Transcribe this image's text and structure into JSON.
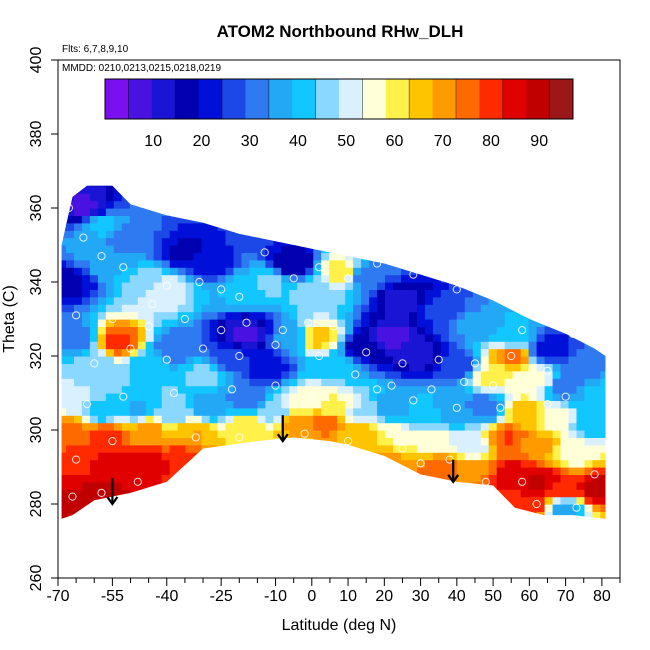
{
  "chart_data": {
    "type": "heatmap",
    "title": "ATOM2 Northbound RHw_DLH",
    "info_lines": [
      "Flts: 6,7,8,9,10",
      "MMDD: 0210,0213,0215,0218,0219"
    ],
    "xlabel": "Latitude (deg N)",
    "ylabel": "Theta (C)",
    "xlim": [
      -70,
      85
    ],
    "ylim": [
      260,
      400
    ],
    "x_ticks": [
      -70,
      -55,
      -40,
      -25,
      -10,
      0,
      10,
      20,
      30,
      40,
      50,
      60,
      70,
      80
    ],
    "x_minor_ticks": [
      -65,
      -60,
      -50,
      -45,
      -35,
      -30,
      -20,
      -15,
      -5,
      5,
      15,
      25,
      35,
      45,
      55,
      65,
      75,
      85
    ],
    "y_ticks": [
      260,
      280,
      300,
      320,
      340,
      360,
      380,
      400
    ],
    "colorbar": {
      "range": [
        0,
        97
      ],
      "ticks": [
        10,
        20,
        30,
        40,
        50,
        60,
        70,
        80,
        90
      ],
      "colors": [
        "#7a10f0",
        "#4a12e0",
        "#1a14d4",
        "#0000b0",
        "#0010d8",
        "#1c48e8",
        "#2f7af0",
        "#23a8f6",
        "#12c6ff",
        "#8ad8ff",
        "#d9f0ff",
        "#ffffd8",
        "#fff04a",
        "#ffc400",
        "#ff9a00",
        "#ff6a00",
        "#ff2a00",
        "#e00000",
        "#c00000",
        "#9a1818"
      ]
    },
    "envelope_top": [
      [
        -69,
        350
      ],
      [
        -66,
        363
      ],
      [
        -62,
        366
      ],
      [
        -55,
        366
      ],
      [
        -50,
        361
      ],
      [
        -40,
        358
      ],
      [
        -30,
        356
      ],
      [
        -20,
        353
      ],
      [
        -10,
        351
      ],
      [
        0,
        349
      ],
      [
        10,
        347
      ],
      [
        20,
        345
      ],
      [
        30,
        342
      ],
      [
        40,
        339
      ],
      [
        50,
        335
      ],
      [
        60,
        330
      ],
      [
        70,
        326
      ],
      [
        78,
        322
      ],
      [
        81,
        320
      ]
    ],
    "envelope_bottom": [
      [
        81,
        276
      ],
      [
        72,
        277
      ],
      [
        64,
        277
      ],
      [
        56,
        279
      ],
      [
        50,
        285
      ],
      [
        40,
        286
      ],
      [
        30,
        288
      ],
      [
        20,
        293
      ],
      [
        10,
        296
      ],
      [
        5,
        297
      ],
      [
        -5,
        298
      ],
      [
        -15,
        297
      ],
      [
        -30,
        295
      ],
      [
        -40,
        286
      ],
      [
        -50,
        283
      ],
      [
        -60,
        281
      ],
      [
        -66,
        277
      ],
      [
        -69,
        276
      ]
    ],
    "cells": [
      {
        "lat": -67,
        "theta": 340,
        "rh": 18
      },
      {
        "lat": -62,
        "theta": 350,
        "rh": 35
      },
      {
        "lat": -62,
        "theta": 360,
        "rh": 8
      },
      {
        "lat": -58,
        "theta": 356,
        "rh": 42
      },
      {
        "lat": -55,
        "theta": 345,
        "rh": 38
      },
      {
        "lat": -50,
        "theta": 352,
        "rh": 30
      },
      {
        "lat": -45,
        "theta": 340,
        "rh": 48
      },
      {
        "lat": -40,
        "theta": 338,
        "rh": 52
      },
      {
        "lat": -35,
        "theta": 348,
        "rh": 18
      },
      {
        "lat": -28,
        "theta": 345,
        "rh": 22
      },
      {
        "lat": -20,
        "theta": 338,
        "rh": 40
      },
      {
        "lat": -12,
        "theta": 340,
        "rh": 45
      },
      {
        "lat": -5,
        "theta": 345,
        "rh": 15
      },
      {
        "lat": 2,
        "theta": 338,
        "rh": 48
      },
      {
        "lat": 8,
        "theta": 343,
        "rh": 62
      },
      {
        "lat": 15,
        "theta": 342,
        "rh": 30
      },
      {
        "lat": 25,
        "theta": 335,
        "rh": 12
      },
      {
        "lat": 35,
        "theta": 332,
        "rh": 25
      },
      {
        "lat": 45,
        "theta": 328,
        "rh": 35
      },
      {
        "lat": 55,
        "theta": 325,
        "rh": 40
      },
      {
        "lat": 65,
        "theta": 322,
        "rh": 20
      },
      {
        "lat": 75,
        "theta": 318,
        "rh": 30
      },
      {
        "lat": -65,
        "theta": 325,
        "rh": 30
      },
      {
        "lat": -60,
        "theta": 318,
        "rh": 45
      },
      {
        "lat": -53,
        "theta": 324,
        "rh": 80
      },
      {
        "lat": -45,
        "theta": 318,
        "rh": 40
      },
      {
        "lat": -38,
        "theta": 322,
        "rh": 30
      },
      {
        "lat": -30,
        "theta": 315,
        "rh": 45
      },
      {
        "lat": -22,
        "theta": 320,
        "rh": 25
      },
      {
        "lat": -18,
        "theta": 326,
        "rh": 8
      },
      {
        "lat": -12,
        "theta": 317,
        "rh": 20
      },
      {
        "lat": -6,
        "theta": 325,
        "rh": 35
      },
      {
        "lat": 2,
        "theta": 325,
        "rh": 65
      },
      {
        "lat": 8,
        "theta": 318,
        "rh": 40
      },
      {
        "lat": 14,
        "theta": 322,
        "rh": 15
      },
      {
        "lat": 22,
        "theta": 325,
        "rh": 8
      },
      {
        "lat": 30,
        "theta": 320,
        "rh": 12
      },
      {
        "lat": 40,
        "theta": 318,
        "rh": 25
      },
      {
        "lat": 50,
        "theta": 315,
        "rh": 60
      },
      {
        "lat": 55,
        "theta": 320,
        "rh": 75
      },
      {
        "lat": 62,
        "theta": 314,
        "rh": 55
      },
      {
        "lat": 70,
        "theta": 312,
        "rh": 30
      },
      {
        "lat": 78,
        "theta": 310,
        "rh": 40
      },
      {
        "lat": -66,
        "theta": 308,
        "rh": 50
      },
      {
        "lat": -58,
        "theta": 305,
        "rh": 40
      },
      {
        "lat": -48,
        "theta": 306,
        "rh": 38
      },
      {
        "lat": -38,
        "theta": 305,
        "rh": 45
      },
      {
        "lat": -28,
        "theta": 306,
        "rh": 35
      },
      {
        "lat": -18,
        "theta": 308,
        "rh": 30
      },
      {
        "lat": -10,
        "theta": 305,
        "rh": 45
      },
      {
        "lat": -2,
        "theta": 308,
        "rh": 55
      },
      {
        "lat": 6,
        "theta": 306,
        "rh": 60
      },
      {
        "lat": 14,
        "theta": 305,
        "rh": 48
      },
      {
        "lat": 22,
        "theta": 306,
        "rh": 35
      },
      {
        "lat": 30,
        "theta": 304,
        "rh": 40
      },
      {
        "lat": 40,
        "theta": 305,
        "rh": 35
      },
      {
        "lat": 48,
        "theta": 306,
        "rh": 30
      },
      {
        "lat": 58,
        "theta": 305,
        "rh": 65
      },
      {
        "lat": 68,
        "theta": 303,
        "rh": 55
      },
      {
        "lat": 76,
        "theta": 302,
        "rh": 40
      },
      {
        "lat": -67,
        "theta": 300,
        "rh": 75
      },
      {
        "lat": -57,
        "theta": 299,
        "rh": 80
      },
      {
        "lat": -45,
        "theta": 300,
        "rh": 70
      },
      {
        "lat": -32,
        "theta": 300,
        "rh": 68
      },
      {
        "lat": -18,
        "theta": 301,
        "rh": 62
      },
      {
        "lat": -5,
        "theta": 302,
        "rh": 70
      },
      {
        "lat": 4,
        "theta": 302,
        "rh": 75
      },
      {
        "lat": 14,
        "theta": 300,
        "rh": 65
      },
      {
        "lat": 24,
        "theta": 298,
        "rh": 58
      },
      {
        "lat": 34,
        "theta": 297,
        "rh": 55
      },
      {
        "lat": 44,
        "theta": 296,
        "rh": 50
      },
      {
        "lat": 54,
        "theta": 298,
        "rh": 78
      },
      {
        "lat": 63,
        "theta": 296,
        "rh": 70
      },
      {
        "lat": 72,
        "theta": 294,
        "rh": 55
      },
      {
        "lat": -66,
        "theta": 290,
        "rh": 82
      },
      {
        "lat": -55,
        "theta": 290,
        "rh": 84
      },
      {
        "lat": -45,
        "theta": 291,
        "rh": 85
      },
      {
        "lat": -35,
        "theta": 292,
        "rh": 80
      },
      {
        "lat": 20,
        "theta": 292,
        "rh": 70
      },
      {
        "lat": 35,
        "theta": 290,
        "rh": 75
      },
      {
        "lat": 45,
        "theta": 289,
        "rh": 72
      },
      {
        "lat": 55,
        "theta": 288,
        "rh": 85
      },
      {
        "lat": 63,
        "theta": 286,
        "rh": 88
      },
      {
        "lat": 70,
        "theta": 284,
        "rh": 80
      },
      {
        "lat": 78,
        "theta": 284,
        "rh": 90
      },
      {
        "lat": -65,
        "theta": 281,
        "rh": 88
      },
      {
        "lat": -58,
        "theta": 283,
        "rh": 90
      },
      {
        "lat": 60,
        "theta": 280,
        "rh": 82
      },
      {
        "lat": 70,
        "theta": 279,
        "rh": 35
      }
    ],
    "measurement_points": [
      [
        -67,
        360
      ],
      [
        -63,
        352
      ],
      [
        -58,
        347
      ],
      [
        -52,
        344
      ],
      [
        -44,
        334
      ],
      [
        -40,
        339
      ],
      [
        -31,
        340
      ],
      [
        -25,
        338
      ],
      [
        -20,
        336
      ],
      [
        -13,
        348
      ],
      [
        -5,
        341
      ],
      [
        2,
        344
      ],
      [
        10,
        341
      ],
      [
        18,
        345
      ],
      [
        28,
        342
      ],
      [
        40,
        338
      ],
      [
        58,
        327
      ],
      [
        72,
        326
      ],
      [
        -65,
        331
      ],
      [
        -55,
        330
      ],
      [
        -45,
        328
      ],
      [
        -35,
        330
      ],
      [
        -25,
        327
      ],
      [
        -18,
        329
      ],
      [
        -8,
        327
      ],
      [
        -1,
        329
      ],
      [
        6,
        328
      ],
      [
        15,
        321
      ],
      [
        25,
        318
      ],
      [
        35,
        319
      ],
      [
        45,
        318
      ],
      [
        55,
        320
      ],
      [
        65,
        316
      ],
      [
        -60,
        318
      ],
      [
        -50,
        322
      ],
      [
        -40,
        319
      ],
      [
        -30,
        322
      ],
      [
        -20,
        320
      ],
      [
        -10,
        323
      ],
      [
        2,
        320
      ],
      [
        12,
        315
      ],
      [
        22,
        312
      ],
      [
        33,
        311
      ],
      [
        42,
        313
      ],
      [
        50,
        312
      ],
      [
        60,
        310
      ],
      [
        70,
        309
      ],
      [
        -62,
        307
      ],
      [
        -52,
        309
      ],
      [
        -38,
        310
      ],
      [
        -22,
        311
      ],
      [
        -10,
        312
      ],
      [
        0,
        309
      ],
      [
        18,
        311
      ],
      [
        28,
        308
      ],
      [
        40,
        306
      ],
      [
        52,
        306
      ],
      [
        65,
        307
      ],
      [
        -65,
        292
      ],
      [
        -55,
        297
      ],
      [
        -32,
        298
      ],
      [
        -20,
        298
      ],
      [
        10,
        297
      ],
      [
        25,
        295
      ],
      [
        38,
        292
      ],
      [
        48,
        286
      ],
      [
        58,
        286
      ],
      [
        73,
        279
      ],
      [
        -66,
        282
      ],
      [
        -58,
        283
      ],
      [
        -48,
        286
      ],
      [
        -2,
        299
      ],
      [
        30,
        291
      ],
      [
        62,
        280
      ],
      [
        78,
        288
      ]
    ],
    "arrows": [
      {
        "lat": -55,
        "theta_start": 287,
        "theta_end": 280
      },
      {
        "lat": -8,
        "theta_start": 304,
        "theta_end": 297
      },
      {
        "lat": 39,
        "theta_start": 292,
        "theta_end": 286
      }
    ]
  }
}
